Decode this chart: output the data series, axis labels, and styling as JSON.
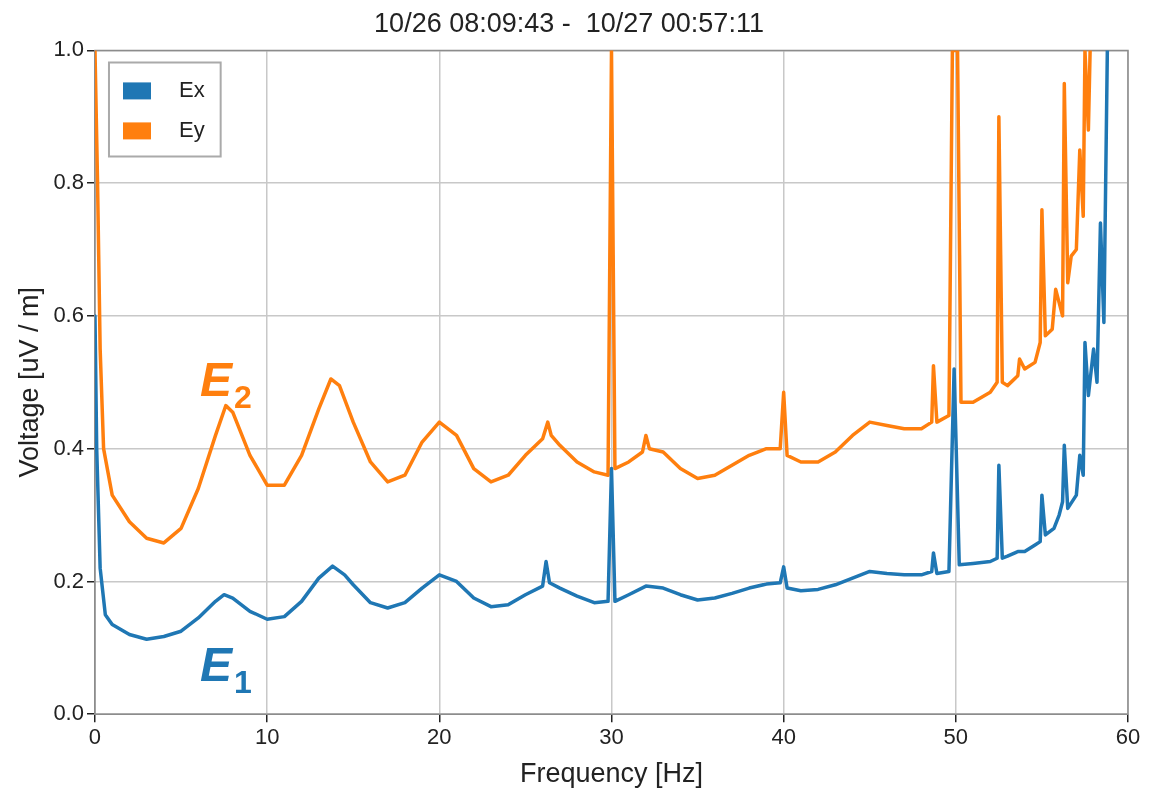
{
  "chart_data": {
    "type": "line",
    "title": "10/26 08:09:43 -  10/27 00:57:11",
    "xlabel": "Frequency [Hz]",
    "ylabel": "Voltage [uV / m]",
    "xlim": [
      0,
      60
    ],
    "ylim": [
      0,
      1
    ],
    "xticks": [
      0,
      10,
      20,
      30,
      40,
      50,
      60
    ],
    "yticks": [
      {
        "value": 0,
        "label": "0.0"
      },
      {
        "value": 0.2,
        "label": "0.2"
      },
      {
        "value": 0.4,
        "label": "0.4"
      },
      {
        "value": 0.6,
        "label": "0.6"
      },
      {
        "value": 0.8,
        "label": "0.8"
      },
      {
        "value": 1,
        "label": "1.0"
      }
    ],
    "grid": true,
    "legend": "top left",
    "marker": "none",
    "line_style": "solid",
    "annotations": [
      "E$_{2}$",
      "E$_{1}$"
    ],
    "series": [
      {
        "name": "Ex",
        "color": "#1f77b4",
        "x": [
          0,
          0.1,
          0.3,
          0.6,
          1,
          2,
          3,
          4,
          5,
          6,
          7,
          7.5,
          8,
          9,
          10,
          11,
          12,
          13,
          13.8,
          14.5,
          15,
          16,
          17,
          18,
          19,
          20,
          21,
          22,
          23,
          24,
          25,
          26,
          26.2,
          26.4,
          27,
          28,
          29,
          29.8,
          30,
          30.2,
          31,
          32,
          33,
          34,
          35,
          36,
          37,
          38,
          39,
          39.8,
          40,
          40.2,
          41,
          42,
          43,
          44,
          45,
          46,
          47,
          48,
          48.6,
          48.7,
          48.9,
          49.6,
          49.9,
          50.2,
          51,
          52,
          52.4,
          52.5,
          52.7,
          53,
          53.6,
          54,
          54.6,
          54.9,
          55,
          55.2,
          55.7,
          56,
          56.2,
          56.3,
          56.5,
          57,
          57.2,
          57.4,
          57.5,
          57.7,
          58,
          58.2,
          58.4,
          58.6,
          58.8
        ],
        "values": [
          0.6,
          0.4,
          0.22,
          0.15,
          0.135,
          0.12,
          0.113,
          0.117,
          0.125,
          0.145,
          0.17,
          0.18,
          0.175,
          0.155,
          0.143,
          0.147,
          0.17,
          0.205,
          0.223,
          0.21,
          0.195,
          0.168,
          0.16,
          0.168,
          0.19,
          0.21,
          0.2,
          0.175,
          0.162,
          0.165,
          0.18,
          0.193,
          0.23,
          0.198,
          0.19,
          0.178,
          0.168,
          0.17,
          0.37,
          0.17,
          0.18,
          0.193,
          0.19,
          0.18,
          0.172,
          0.175,
          0.182,
          0.19,
          0.196,
          0.198,
          0.222,
          0.19,
          0.186,
          0.188,
          0.195,
          0.205,
          0.215,
          0.212,
          0.21,
          0.21,
          0.215,
          0.243,
          0.212,
          0.215,
          0.52,
          0.225,
          0.227,
          0.23,
          0.235,
          0.375,
          0.235,
          0.238,
          0.245,
          0.245,
          0.255,
          0.26,
          0.33,
          0.27,
          0.28,
          0.3,
          0.32,
          0.405,
          0.31,
          0.33,
          0.39,
          0.36,
          0.56,
          0.48,
          0.55,
          0.5,
          0.74,
          0.59,
          1.0
        ]
      },
      {
        "name": "Ey",
        "color": "#ff7f0e",
        "x": [
          0,
          0.15,
          0.3,
          0.5,
          1,
          2,
          3,
          4,
          5,
          6,
          7,
          7.6,
          8,
          9,
          10,
          11,
          12,
          13,
          13.7,
          14.2,
          15,
          16,
          17,
          18,
          19,
          20,
          21,
          22,
          23,
          24,
          25,
          26,
          26.3,
          26.5,
          27,
          28,
          29,
          29.8,
          30,
          30.2,
          31,
          31.8,
          32,
          32.2,
          33,
          34,
          35,
          36,
          37,
          38,
          39,
          39.8,
          40,
          40.2,
          41,
          42,
          43,
          44,
          45,
          46,
          47,
          48,
          48.6,
          48.7,
          48.9,
          49.6,
          49.8,
          50.1,
          50.3,
          51,
          52,
          52.4,
          52.5,
          52.7,
          53,
          53.6,
          53.7,
          54,
          54.6,
          54.9,
          55,
          55.2,
          55.6,
          55.8,
          56,
          56.2,
          56.3,
          56.5,
          56.7,
          57,
          57.2,
          57.4,
          57.5,
          57.7,
          57.8
        ],
        "values": [
          1.0,
          0.8,
          0.55,
          0.4,
          0.33,
          0.29,
          0.265,
          0.258,
          0.28,
          0.34,
          0.42,
          0.465,
          0.455,
          0.39,
          0.345,
          0.345,
          0.39,
          0.46,
          0.505,
          0.495,
          0.44,
          0.38,
          0.35,
          0.36,
          0.41,
          0.44,
          0.42,
          0.37,
          0.35,
          0.36,
          0.39,
          0.415,
          0.44,
          0.42,
          0.405,
          0.38,
          0.365,
          0.36,
          1.0,
          0.37,
          0.38,
          0.395,
          0.42,
          0.4,
          0.395,
          0.37,
          0.355,
          0.36,
          0.375,
          0.39,
          0.4,
          0.4,
          0.485,
          0.39,
          0.38,
          0.38,
          0.395,
          0.42,
          0.44,
          0.435,
          0.43,
          0.43,
          0.44,
          0.525,
          0.44,
          0.45,
          1.0,
          1.0,
          0.47,
          0.47,
          0.485,
          0.5,
          0.9,
          0.5,
          0.495,
          0.51,
          0.535,
          0.52,
          0.53,
          0.56,
          0.76,
          0.57,
          0.58,
          0.64,
          0.62,
          0.6,
          0.95,
          0.65,
          0.69,
          0.7,
          0.85,
          0.75,
          1.0,
          0.88,
          1.0
        ]
      }
    ]
  }
}
